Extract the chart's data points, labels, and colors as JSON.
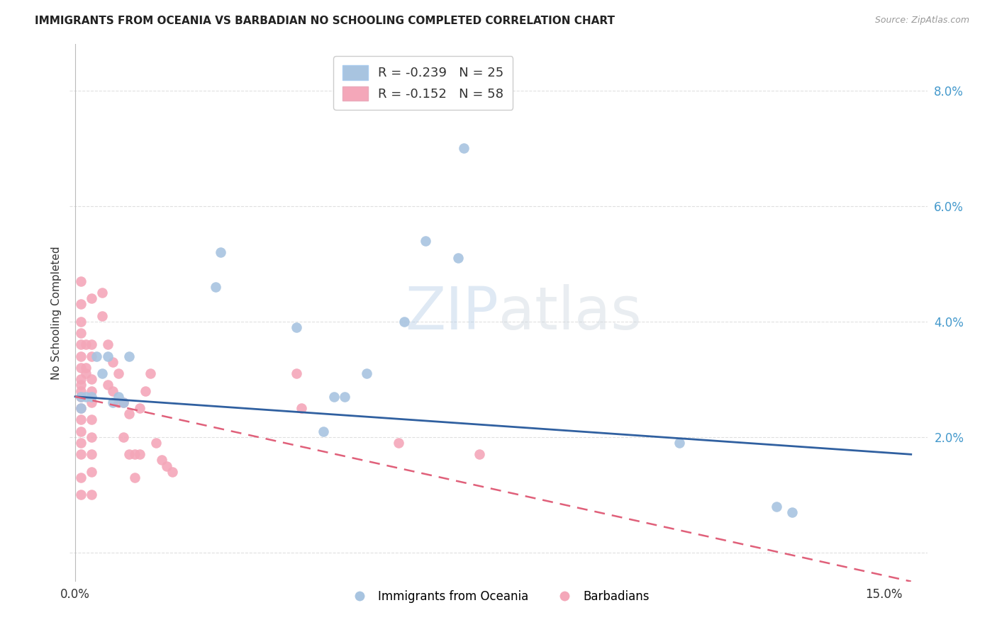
{
  "title": "IMMIGRANTS FROM OCEANIA VS BARBADIAN NO SCHOOLING COMPLETED CORRELATION CHART",
  "source": "Source: ZipAtlas.com",
  "ylabel": "No Schooling Completed",
  "yticks": [
    0.0,
    0.02,
    0.04,
    0.06,
    0.08
  ],
  "ytick_labels": [
    "",
    "2.0%",
    "4.0%",
    "6.0%",
    "8.0%"
  ],
  "xticks": [
    0.0,
    0.03,
    0.06,
    0.09,
    0.12,
    0.15
  ],
  "xtick_labels": [
    "0.0%",
    "",
    "",
    "",
    "",
    "15.0%"
  ],
  "xlim": [
    -0.001,
    0.158
  ],
  "ylim": [
    -0.005,
    0.088
  ],
  "legend_blue_r": "-0.239",
  "legend_blue_n": "25",
  "legend_pink_r": "-0.152",
  "legend_pink_n": "58",
  "blue_color": "#a8c4e0",
  "pink_color": "#f4a7b9",
  "blue_line_color": "#3060a0",
  "pink_line_color": "#e0607a",
  "blue_scatter": [
    [
      0.001,
      0.027
    ],
    [
      0.001,
      0.025
    ],
    [
      0.002,
      0.027
    ],
    [
      0.003,
      0.027
    ],
    [
      0.004,
      0.034
    ],
    [
      0.005,
      0.031
    ],
    [
      0.006,
      0.034
    ],
    [
      0.007,
      0.026
    ],
    [
      0.008,
      0.027
    ],
    [
      0.009,
      0.026
    ],
    [
      0.01,
      0.034
    ],
    [
      0.026,
      0.046
    ],
    [
      0.027,
      0.052
    ],
    [
      0.041,
      0.039
    ],
    [
      0.046,
      0.021
    ],
    [
      0.048,
      0.027
    ],
    [
      0.05,
      0.027
    ],
    [
      0.054,
      0.031
    ],
    [
      0.061,
      0.04
    ],
    [
      0.065,
      0.054
    ],
    [
      0.071,
      0.051
    ],
    [
      0.072,
      0.07
    ],
    [
      0.112,
      0.019
    ],
    [
      0.13,
      0.008
    ],
    [
      0.133,
      0.007
    ]
  ],
  "pink_scatter": [
    [
      0.001,
      0.047
    ],
    [
      0.001,
      0.043
    ],
    [
      0.001,
      0.04
    ],
    [
      0.001,
      0.038
    ],
    [
      0.001,
      0.036
    ],
    [
      0.001,
      0.034
    ],
    [
      0.001,
      0.032
    ],
    [
      0.001,
      0.03
    ],
    [
      0.001,
      0.029
    ],
    [
      0.001,
      0.028
    ],
    [
      0.001,
      0.027
    ],
    [
      0.001,
      0.025
    ],
    [
      0.001,
      0.023
    ],
    [
      0.001,
      0.021
    ],
    [
      0.001,
      0.019
    ],
    [
      0.001,
      0.017
    ],
    [
      0.001,
      0.013
    ],
    [
      0.001,
      0.01
    ],
    [
      0.002,
      0.036
    ],
    [
      0.002,
      0.032
    ],
    [
      0.002,
      0.031
    ],
    [
      0.003,
      0.044
    ],
    [
      0.003,
      0.036
    ],
    [
      0.003,
      0.034
    ],
    [
      0.003,
      0.03
    ],
    [
      0.003,
      0.028
    ],
    [
      0.003,
      0.026
    ],
    [
      0.003,
      0.023
    ],
    [
      0.003,
      0.02
    ],
    [
      0.003,
      0.017
    ],
    [
      0.003,
      0.014
    ],
    [
      0.003,
      0.01
    ],
    [
      0.005,
      0.045
    ],
    [
      0.005,
      0.041
    ],
    [
      0.006,
      0.036
    ],
    [
      0.006,
      0.029
    ],
    [
      0.007,
      0.033
    ],
    [
      0.007,
      0.028
    ],
    [
      0.008,
      0.031
    ],
    [
      0.008,
      0.026
    ],
    [
      0.009,
      0.026
    ],
    [
      0.009,
      0.02
    ],
    [
      0.01,
      0.024
    ],
    [
      0.01,
      0.017
    ],
    [
      0.011,
      0.017
    ],
    [
      0.011,
      0.013
    ],
    [
      0.012,
      0.025
    ],
    [
      0.012,
      0.017
    ],
    [
      0.013,
      0.028
    ],
    [
      0.014,
      0.031
    ],
    [
      0.015,
      0.019
    ],
    [
      0.016,
      0.016
    ],
    [
      0.017,
      0.015
    ],
    [
      0.018,
      0.014
    ],
    [
      0.041,
      0.031
    ],
    [
      0.042,
      0.025
    ],
    [
      0.06,
      0.019
    ],
    [
      0.075,
      0.017
    ]
  ],
  "background_color": "#ffffff",
  "grid_color": "#e0e0e0",
  "watermark_zip": "ZIP",
  "watermark_atlas": "atlas"
}
